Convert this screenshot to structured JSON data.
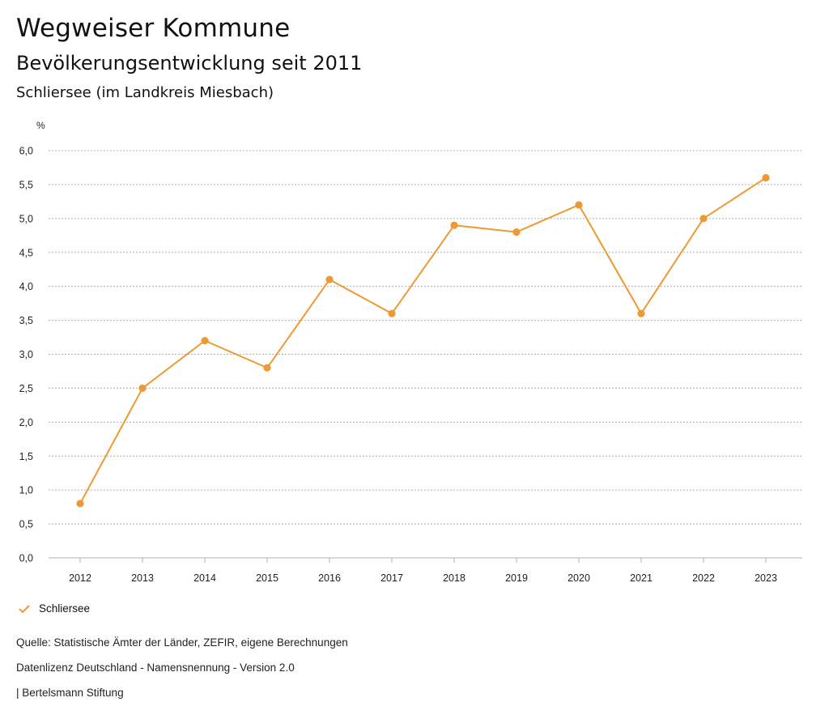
{
  "header": {
    "title": "Wegweiser Kommune",
    "subtitle": "Bevölkerungsentwicklung seit 2011",
    "region": "Schliersee (im Landkreis Miesbach)"
  },
  "colors": {
    "series": "#ED9A34",
    "grid": "#B0B0B0",
    "text": "#111111"
  },
  "chart_data": {
    "type": "line",
    "title": "Bevölkerungsentwicklung seit 2011",
    "ylabel": "%",
    "xlabel": "",
    "ylim": [
      0,
      6
    ],
    "yticks": [
      "0,0",
      "0,5",
      "1,0",
      "1,5",
      "2,0",
      "2,5",
      "3,0",
      "3,5",
      "4,0",
      "4,5",
      "5,0",
      "5,5",
      "6,0"
    ],
    "categories": [
      "2012",
      "2013",
      "2014",
      "2015",
      "2016",
      "2017",
      "2018",
      "2019",
      "2020",
      "2021",
      "2022",
      "2023"
    ],
    "series": [
      {
        "name": "Schliersee",
        "values": [
          0.8,
          2.5,
          3.2,
          2.8,
          4.1,
          3.6,
          4.9,
          4.8,
          5.2,
          3.6,
          5.0,
          5.6
        ]
      }
    ],
    "grid": true,
    "legend": "bottom-left"
  },
  "legend": {
    "label": "Schliersee",
    "icon": "check-icon"
  },
  "footer": {
    "source": "Quelle: Statistische Ämter der Länder, ZEFIR, eigene Berechnungen",
    "license": "Datenlizenz Deutschland - Namensnennung - Version 2.0",
    "publisher": "| Bertelsmann Stiftung"
  }
}
